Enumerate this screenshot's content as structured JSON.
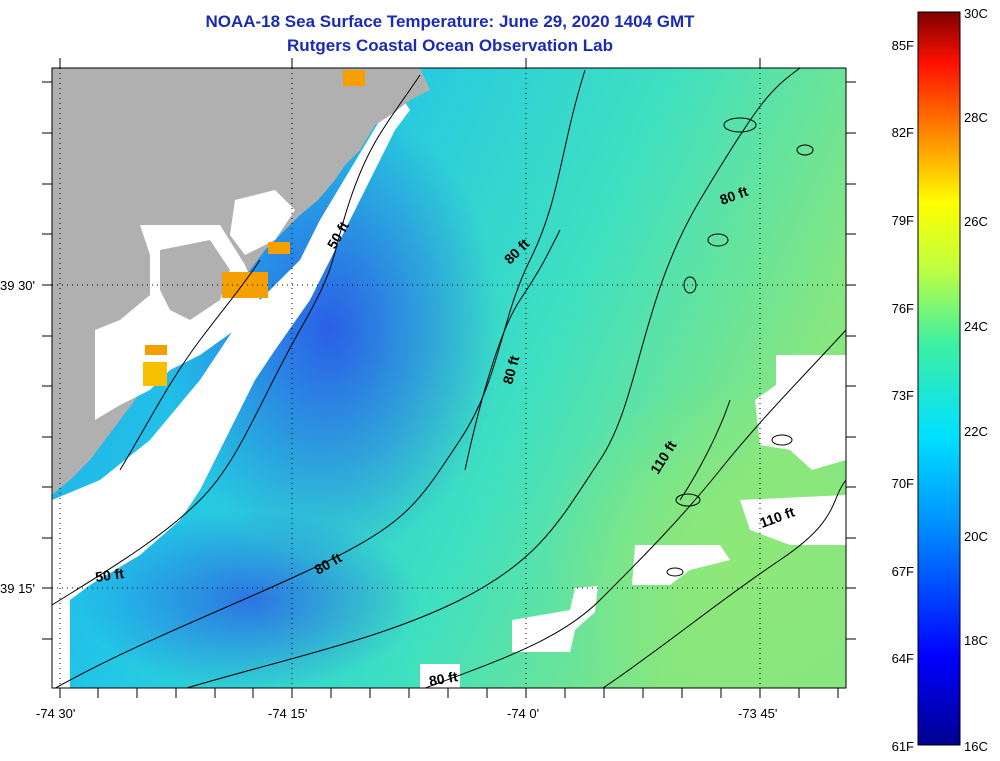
{
  "header": {
    "title": "NOAA-18 Sea Surface Temperature:  June 29, 2020 1404 GMT",
    "subtitle": "Rutgers Coastal Ocean Observation Lab"
  },
  "map": {
    "lon_labels": [
      "-74 30'",
      "-74 15'",
      "-74 0'",
      "-73 45'"
    ],
    "lat_labels": [
      "39 30'",
      "39 15'"
    ],
    "contour_labels": [
      "50 ft",
      "80 ft",
      "80 ft",
      "80 ft",
      "110 ft",
      "110 ft",
      "80 ft",
      "50 ft",
      "80 ft"
    ],
    "colors": {
      "land": "#b0b0b0",
      "cloud": "#ffffff",
      "water_cold": "#2a6bea",
      "water_mid": "#20c8e0",
      "water_warm": "#8ee878",
      "hot_pixel": "#f5a000"
    }
  },
  "colorbar": {
    "fahrenheit_labels": [
      "85F",
      "82F",
      "79F",
      "76F",
      "73F",
      "70F",
      "67F",
      "64F",
      "61F"
    ],
    "celsius_labels": [
      "30C",
      "28C",
      "26C",
      "24C",
      "22C",
      "20C",
      "18C",
      "16C"
    ]
  }
}
